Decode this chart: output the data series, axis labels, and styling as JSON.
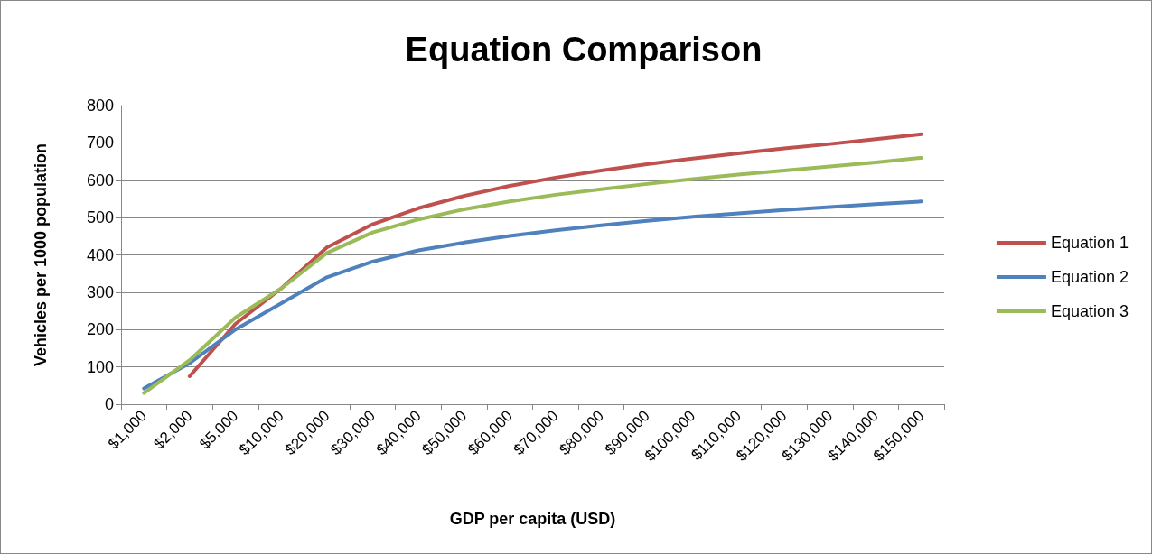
{
  "chart_data": {
    "type": "line",
    "title": "Equation Comparison",
    "xlabel": "GDP per capita (USD)",
    "ylabel": "Vehicles per 1000 population",
    "categories": [
      "$1,000",
      "$2,000",
      "$5,000",
      "$10,000",
      "$20,000",
      "$30,000",
      "$40,000",
      "$50,000",
      "$60,000",
      "$70,000",
      "$80,000",
      "$90,000",
      "$100,000",
      "$110,000",
      "$120,000",
      "$130,000",
      "$140,000",
      "$150,000"
    ],
    "series": [
      {
        "name": "Equation 1",
        "color": "#c0504d",
        "values": [
          null,
          75,
          215,
          310,
          420,
          482,
          525,
          558,
          585,
          607,
          626,
          643,
          658,
          672,
          685,
          697,
          710,
          723
        ]
      },
      {
        "name": "Equation 2",
        "color": "#4f81bd",
        "values": [
          42,
          110,
          200,
          270,
          340,
          382,
          412,
          433,
          451,
          466,
          479,
          491,
          502,
          511,
          520,
          528,
          536,
          543
        ]
      },
      {
        "name": "Equation 3",
        "color": "#9bbb59",
        "values": [
          30,
          118,
          232,
          310,
          405,
          460,
          495,
          522,
          543,
          561,
          576,
          590,
          603,
          615,
          626,
          637,
          648,
          660
        ]
      }
    ],
    "ylim": [
      0,
      800
    ],
    "yticks": [
      0,
      100,
      200,
      300,
      400,
      500,
      600,
      700,
      800
    ],
    "grid": "y",
    "legend": "right",
    "marker": "none",
    "line_style": "solid"
  }
}
